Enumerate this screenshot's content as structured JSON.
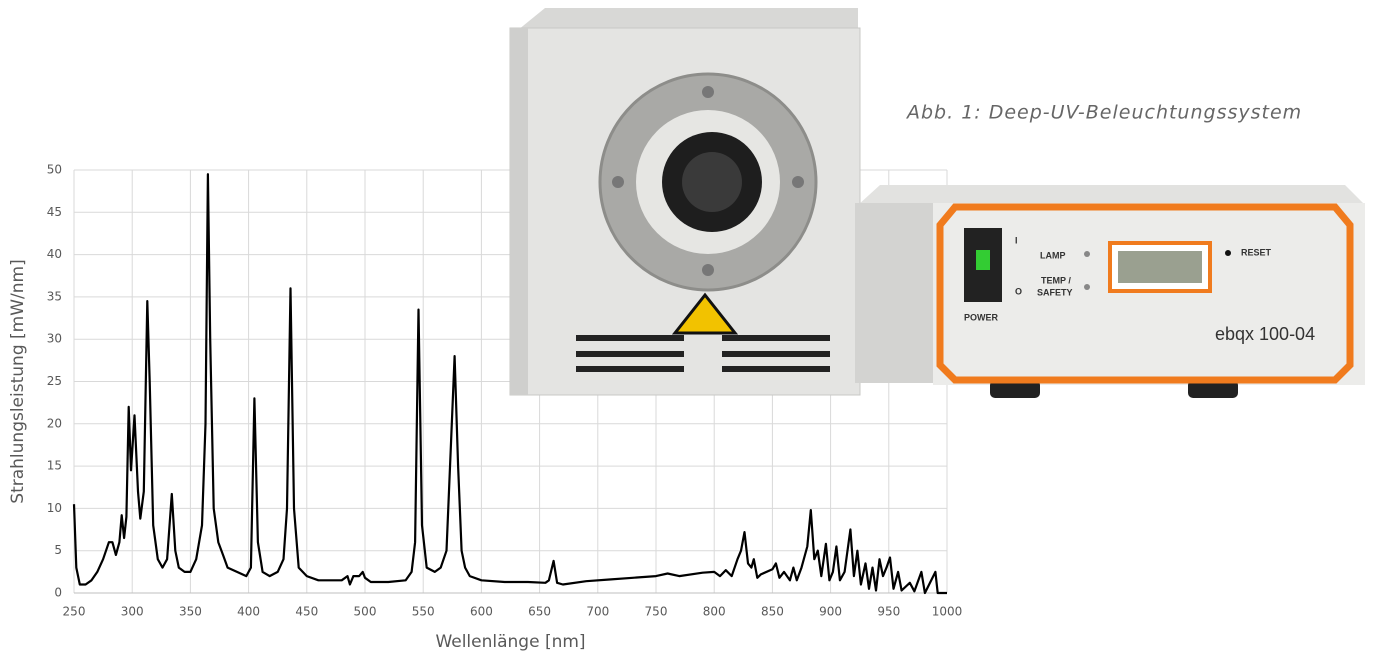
{
  "chart_data": {
    "type": "line",
    "xlabel": "Wellenlänge [nm]",
    "ylabel": "Strahlungsleistung [mW/nm]",
    "xlim": [
      250,
      1000
    ],
    "xticks": [
      250,
      300,
      350,
      400,
      450,
      500,
      550,
      600,
      650,
      700,
      750,
      800,
      850,
      900,
      950,
      1000
    ],
    "ylim": [
      0,
      50
    ],
    "yticks": [
      0,
      5,
      10,
      15,
      20,
      25,
      30,
      35,
      40,
      45,
      50
    ],
    "grid": true,
    "color": "#000000",
    "x": [
      250,
      252,
      255,
      260,
      265,
      270,
      275,
      280,
      283,
      286,
      289,
      291,
      293,
      295,
      297,
      299,
      302,
      305,
      307,
      310,
      313,
      315,
      318,
      322,
      326,
      330,
      334,
      337,
      340,
      345,
      350,
      355,
      360,
      363,
      365,
      367,
      370,
      374,
      378,
      382,
      390,
      398,
      402,
      405,
      408,
      412,
      418,
      425,
      430,
      433,
      436,
      439,
      443,
      450,
      460,
      470,
      480,
      485,
      487,
      490,
      495,
      498,
      500,
      505,
      520,
      535,
      540,
      543,
      546,
      549,
      553,
      560,
      565,
      570,
      574,
      577,
      580,
      583,
      586,
      590,
      600,
      620,
      640,
      655,
      658,
      662,
      665,
      670,
      690,
      710,
      730,
      750,
      760,
      770,
      790,
      800,
      805,
      810,
      815,
      820,
      823,
      826,
      829,
      832,
      834,
      837,
      840,
      850,
      853,
      856,
      860,
      865,
      868,
      871,
      875,
      880,
      883,
      886,
      889,
      892,
      896,
      899,
      902,
      905,
      908,
      912,
      917,
      920,
      923,
      926,
      930,
      933,
      936,
      939,
      942,
      945,
      948,
      951,
      954,
      958,
      961,
      968,
      972,
      978,
      981,
      990,
      992,
      1000
    ],
    "values": [
      10.5,
      3,
      1,
      1,
      1.5,
      2.5,
      4,
      6,
      6,
      4.5,
      6,
      9.2,
      6.5,
      9,
      22,
      14.5,
      21,
      12,
      8.8,
      12,
      34.5,
      25,
      8,
      4,
      3,
      4,
      11.7,
      5,
      3,
      2.5,
      2.5,
      4,
      8,
      20,
      49.5,
      30,
      10,
      6,
      4.5,
      3,
      2.5,
      2,
      3,
      23,
      6,
      2.5,
      2,
      2.5,
      4,
      10,
      36,
      10,
      3,
      2,
      1.5,
      1.5,
      1.5,
      2,
      1,
      2,
      2,
      2.5,
      1.8,
      1.3,
      1.3,
      1.5,
      2.5,
      6,
      33.5,
      8,
      3,
      2.5,
      3,
      5,
      18,
      28,
      15,
      5,
      3,
      2,
      1.5,
      1.3,
      1.3,
      1.2,
      1.5,
      3.8,
      1.2,
      1,
      1.4,
      1.6,
      1.8,
      2,
      2.3,
      2,
      2.4,
      2.5,
      2,
      2.7,
      2,
      4,
      5,
      7.2,
      3.5,
      3,
      4,
      1.8,
      2.2,
      2.8,
      3.5,
      1.8,
      2.5,
      1.5,
      3,
      1.5,
      3,
      5.5,
      9.8,
      4,
      5,
      2,
      5.8,
      1.5,
      2.5,
      5.5,
      1.5,
      2.5,
      7.5,
      2,
      5,
      1,
      3.5,
      0.5,
      3,
      0.3,
      4,
      2,
      3,
      4.2,
      0.5,
      2.5,
      0.3,
      1.2,
      0.2,
      2.5,
      0,
      2.5,
      0,
      0
    ]
  },
  "caption": "Abb. 1: Deep-UV-Beleuchtungssystem",
  "device": {
    "switch_on": "I",
    "switch_off": "O",
    "power": "POWER",
    "lamp": "LAMP",
    "temp": "TEMP /",
    "safety": "SAFETY",
    "reset": "RESET",
    "model": "ebqx 100-04"
  }
}
